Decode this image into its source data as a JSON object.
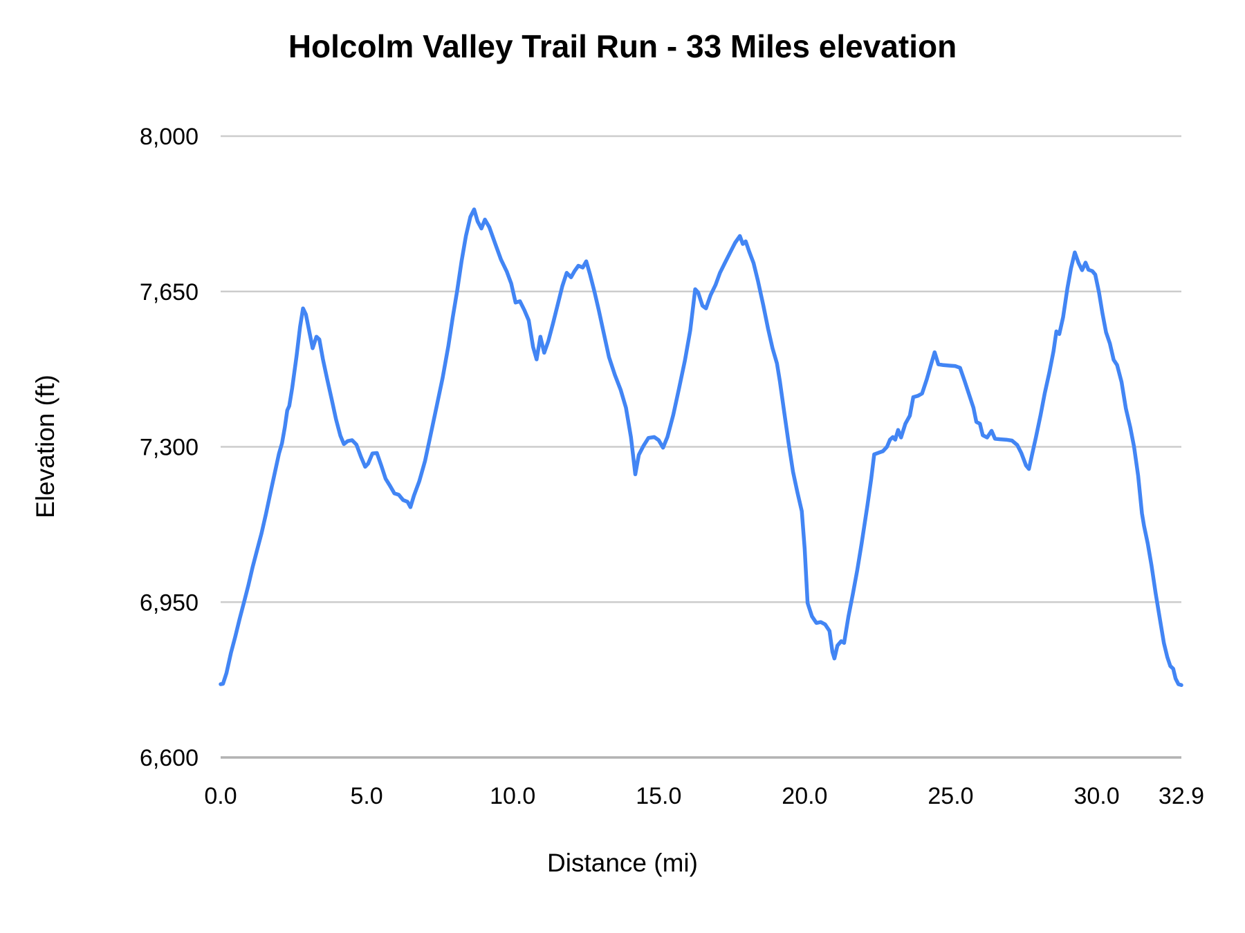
{
  "title": "Holcolm Valley Trail Run - 33 Miles elevation",
  "chart_data": {
    "type": "line",
    "title": "Holcolm Valley Trail Run - 33 Miles elevation",
    "xlabel": "Distance (mi)",
    "ylabel": "Elevation (ft)",
    "xlim": [
      0,
      32.9
    ],
    "ylim": [
      6600,
      8000
    ],
    "grid": "horizontal",
    "legend": "none",
    "line_color": "#4285f4",
    "grid_color": "#cccccc",
    "axis_line_color": "#b2b2b2",
    "tick_label_color": "#000000",
    "x_ticks": {
      "values": [
        0,
        5,
        10,
        15,
        20,
        25,
        30,
        32.9
      ],
      "labels": [
        "0.0",
        "5.0",
        "10.0",
        "15.0",
        "20.0",
        "25.0",
        "30.0",
        "32.9"
      ]
    },
    "y_ticks": {
      "values": [
        6600,
        6950,
        7300,
        7650,
        8000
      ],
      "labels": [
        "6,600",
        "6,950",
        "7,300",
        "7,650",
        "8,000"
      ]
    },
    "series": [
      {
        "name": "Elevation",
        "points": [
          [
            0.0,
            6765
          ],
          [
            0.08,
            6766
          ],
          [
            0.2,
            6790
          ],
          [
            0.35,
            6835
          ],
          [
            0.5,
            6872
          ],
          [
            0.65,
            6912
          ],
          [
            0.8,
            6950
          ],
          [
            0.95,
            6988
          ],
          [
            1.1,
            7030
          ],
          [
            1.25,
            7068
          ],
          [
            1.4,
            7105
          ],
          [
            1.55,
            7148
          ],
          [
            1.7,
            7195
          ],
          [
            1.85,
            7240
          ],
          [
            2.0,
            7285
          ],
          [
            2.1,
            7308
          ],
          [
            2.2,
            7345
          ],
          [
            2.28,
            7382
          ],
          [
            2.35,
            7392
          ],
          [
            2.45,
            7432
          ],
          [
            2.6,
            7505
          ],
          [
            2.72,
            7570
          ],
          [
            2.82,
            7612
          ],
          [
            2.92,
            7598
          ],
          [
            3.05,
            7555
          ],
          [
            3.15,
            7522
          ],
          [
            3.28,
            7548
          ],
          [
            3.38,
            7542
          ],
          [
            3.5,
            7498
          ],
          [
            3.65,
            7452
          ],
          [
            3.8,
            7408
          ],
          [
            3.95,
            7362
          ],
          [
            4.1,
            7325
          ],
          [
            4.22,
            7306
          ],
          [
            4.35,
            7313
          ],
          [
            4.5,
            7315
          ],
          [
            4.65,
            7305
          ],
          [
            4.8,
            7278
          ],
          [
            4.95,
            7255
          ],
          [
            5.05,
            7262
          ],
          [
            5.2,
            7285
          ],
          [
            5.35,
            7286
          ],
          [
            5.5,
            7258
          ],
          [
            5.65,
            7228
          ],
          [
            5.8,
            7212
          ],
          [
            5.95,
            7195
          ],
          [
            6.1,
            7192
          ],
          [
            6.25,
            7180
          ],
          [
            6.4,
            7176
          ],
          [
            6.5,
            7164
          ],
          [
            6.62,
            7190
          ],
          [
            6.8,
            7222
          ],
          [
            7.0,
            7268
          ],
          [
            7.2,
            7330
          ],
          [
            7.4,
            7392
          ],
          [
            7.6,
            7455
          ],
          [
            7.8,
            7528
          ],
          [
            7.95,
            7592
          ],
          [
            8.1,
            7652
          ],
          [
            8.25,
            7718
          ],
          [
            8.4,
            7775
          ],
          [
            8.55,
            7818
          ],
          [
            8.68,
            7835
          ],
          [
            8.8,
            7808
          ],
          [
            8.93,
            7792
          ],
          [
            9.05,
            7812
          ],
          [
            9.2,
            7795
          ],
          [
            9.4,
            7758
          ],
          [
            9.6,
            7722
          ],
          [
            9.8,
            7695
          ],
          [
            9.95,
            7668
          ],
          [
            10.1,
            7625
          ],
          [
            10.25,
            7628
          ],
          [
            10.4,
            7608
          ],
          [
            10.55,
            7585
          ],
          [
            10.7,
            7525
          ],
          [
            10.82,
            7497
          ],
          [
            10.95,
            7548
          ],
          [
            11.08,
            7512
          ],
          [
            11.22,
            7538
          ],
          [
            11.38,
            7578
          ],
          [
            11.55,
            7622
          ],
          [
            11.7,
            7662
          ],
          [
            11.85,
            7692
          ],
          [
            12.0,
            7682
          ],
          [
            12.12,
            7696
          ],
          [
            12.25,
            7708
          ],
          [
            12.4,
            7704
          ],
          [
            12.52,
            7718
          ],
          [
            12.65,
            7688
          ],
          [
            12.8,
            7650
          ],
          [
            12.95,
            7608
          ],
          [
            13.1,
            7562
          ],
          [
            13.3,
            7502
          ],
          [
            13.5,
            7462
          ],
          [
            13.7,
            7428
          ],
          [
            13.88,
            7388
          ],
          [
            14.05,
            7322
          ],
          [
            14.2,
            7238
          ],
          [
            14.32,
            7282
          ],
          [
            14.48,
            7302
          ],
          [
            14.65,
            7320
          ],
          [
            14.85,
            7322
          ],
          [
            15.0,
            7315
          ],
          [
            15.15,
            7298
          ],
          [
            15.3,
            7322
          ],
          [
            15.5,
            7372
          ],
          [
            15.7,
            7432
          ],
          [
            15.9,
            7495
          ],
          [
            16.08,
            7562
          ],
          [
            16.25,
            7655
          ],
          [
            16.35,
            7648
          ],
          [
            16.5,
            7618
          ],
          [
            16.62,
            7612
          ],
          [
            16.78,
            7642
          ],
          [
            16.95,
            7665
          ],
          [
            17.1,
            7692
          ],
          [
            17.25,
            7712
          ],
          [
            17.45,
            7738
          ],
          [
            17.62,
            7760
          ],
          [
            17.78,
            7775
          ],
          [
            17.88,
            7757
          ],
          [
            17.98,
            7763
          ],
          [
            18.1,
            7740
          ],
          [
            18.25,
            7714
          ],
          [
            18.4,
            7674
          ],
          [
            18.58,
            7620
          ],
          [
            18.75,
            7565
          ],
          [
            18.9,
            7522
          ],
          [
            19.05,
            7488
          ],
          [
            19.15,
            7448
          ],
          [
            19.3,
            7378
          ],
          [
            19.45,
            7308
          ],
          [
            19.6,
            7244
          ],
          [
            19.75,
            7198
          ],
          [
            19.9,
            7155
          ],
          [
            20.0,
            7070
          ],
          [
            20.1,
            6948
          ],
          [
            20.25,
            6918
          ],
          [
            20.4,
            6903
          ],
          [
            20.55,
            6905
          ],
          [
            20.7,
            6900
          ],
          [
            20.85,
            6885
          ],
          [
            20.95,
            6838
          ],
          [
            21.02,
            6823
          ],
          [
            21.12,
            6852
          ],
          [
            21.25,
            6862
          ],
          [
            21.35,
            6858
          ],
          [
            21.5,
            6918
          ],
          [
            21.65,
            6968
          ],
          [
            21.8,
            7022
          ],
          [
            21.95,
            7082
          ],
          [
            22.05,
            7125
          ],
          [
            22.15,
            7168
          ],
          [
            22.28,
            7228
          ],
          [
            22.38,
            7283
          ],
          [
            22.55,
            7287
          ],
          [
            22.68,
            7290
          ],
          [
            22.82,
            7300
          ],
          [
            22.92,
            7316
          ],
          [
            23.02,
            7322
          ],
          [
            23.1,
            7316
          ],
          [
            23.2,
            7338
          ],
          [
            23.3,
            7321
          ],
          [
            23.45,
            7352
          ],
          [
            23.6,
            7370
          ],
          [
            23.72,
            7412
          ],
          [
            23.88,
            7415
          ],
          [
            24.02,
            7420
          ],
          [
            24.18,
            7452
          ],
          [
            24.32,
            7484
          ],
          [
            24.45,
            7513
          ],
          [
            24.58,
            7486
          ],
          [
            24.75,
            7484
          ],
          [
            24.95,
            7483
          ],
          [
            25.15,
            7482
          ],
          [
            25.32,
            7478
          ],
          [
            25.48,
            7448
          ],
          [
            25.62,
            7420
          ],
          [
            25.78,
            7388
          ],
          [
            25.88,
            7356
          ],
          [
            26.0,
            7352
          ],
          [
            26.1,
            7326
          ],
          [
            26.25,
            7321
          ],
          [
            26.4,
            7336
          ],
          [
            26.52,
            7318
          ],
          [
            26.7,
            7317
          ],
          [
            26.9,
            7316
          ],
          [
            27.1,
            7314
          ],
          [
            27.28,
            7304
          ],
          [
            27.42,
            7286
          ],
          [
            27.58,
            7258
          ],
          [
            27.68,
            7250
          ],
          [
            27.78,
            7280
          ],
          [
            27.92,
            7322
          ],
          [
            28.08,
            7372
          ],
          [
            28.22,
            7420
          ],
          [
            28.38,
            7468
          ],
          [
            28.52,
            7515
          ],
          [
            28.62,
            7560
          ],
          [
            28.72,
            7554
          ],
          [
            28.85,
            7592
          ],
          [
            29.0,
            7658
          ],
          [
            29.12,
            7702
          ],
          [
            29.25,
            7738
          ],
          [
            29.38,
            7714
          ],
          [
            29.5,
            7698
          ],
          [
            29.62,
            7715
          ],
          [
            29.72,
            7699
          ],
          [
            29.85,
            7696
          ],
          [
            29.95,
            7688
          ],
          [
            30.08,
            7648
          ],
          [
            30.2,
            7600
          ],
          [
            30.32,
            7558
          ],
          [
            30.45,
            7533
          ],
          [
            30.58,
            7496
          ],
          [
            30.7,
            7484
          ],
          [
            30.85,
            7446
          ],
          [
            31.0,
            7386
          ],
          [
            31.15,
            7344
          ],
          [
            31.28,
            7300
          ],
          [
            31.42,
            7235
          ],
          [
            31.55,
            7150
          ],
          [
            31.62,
            7122
          ],
          [
            31.75,
            7082
          ],
          [
            31.88,
            7032
          ],
          [
            32.02,
            6970
          ],
          [
            32.15,
            6918
          ],
          [
            32.3,
            6858
          ],
          [
            32.42,
            6826
          ],
          [
            32.52,
            6806
          ],
          [
            32.62,
            6800
          ],
          [
            32.7,
            6778
          ],
          [
            32.8,
            6765
          ],
          [
            32.9,
            6763
          ]
        ]
      }
    ]
  }
}
